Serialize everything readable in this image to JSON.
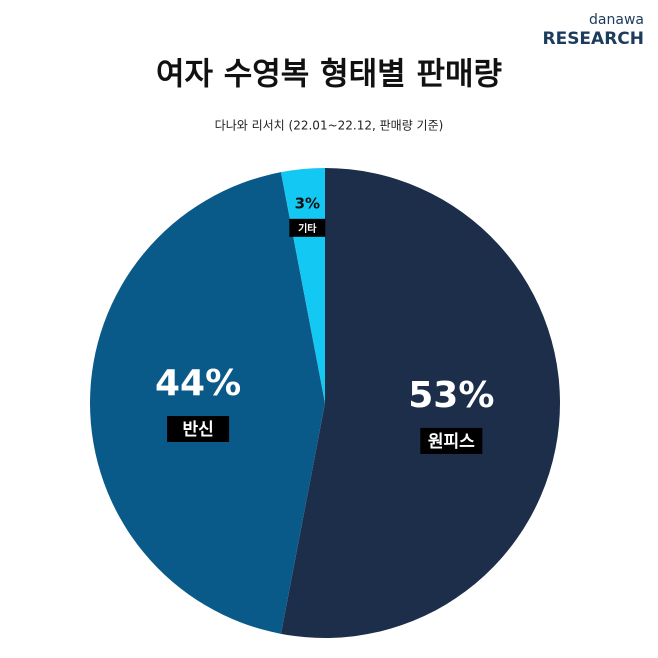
{
  "chart_data": {
    "type": "pie",
    "title": "여자 수영복 형태별 판매량",
    "subtitle": "다나와 리서치 (22.01~22.12, 판매량 기준)",
    "brand": {
      "name": "danawa",
      "label": "RESEARCH"
    },
    "categories": [
      "원피스",
      "반신",
      "기타"
    ],
    "values": [
      53,
      44,
      3
    ],
    "value_labels": [
      "53%",
      "44%",
      "3%"
    ],
    "colors": [
      "#1c2e4a",
      "#0a5a89",
      "#14c8f4"
    ]
  }
}
